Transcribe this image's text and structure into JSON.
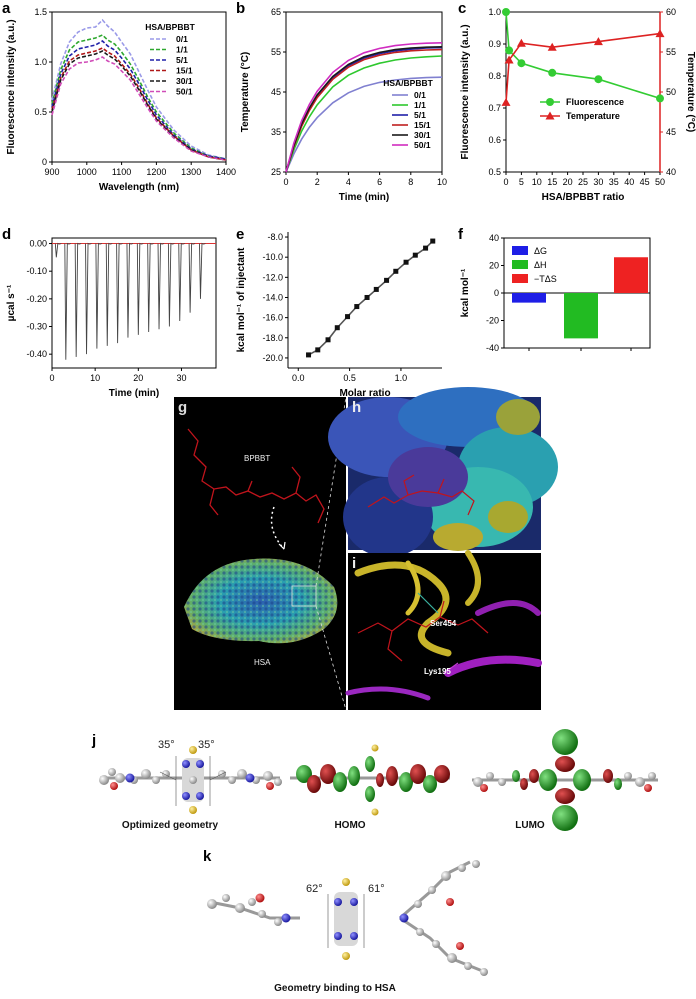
{
  "panel_labels": {
    "a": "a",
    "b": "b",
    "c": "c",
    "d": "d",
    "e": "e",
    "f": "f",
    "g": "g",
    "h": "h",
    "i": "i",
    "j": "j",
    "k": "k"
  },
  "colors": {
    "s01": "#9a9ae8",
    "s11": "#2ea82e",
    "s51": "#2121a8",
    "s151": "#b01818",
    "s301": "#1a1a1a",
    "s501": "#d04cb8",
    "bar_dG": "#1e1ee6",
    "bar_dH": "#22bb22",
    "bar_TdS": "#ee2222"
  },
  "chart_data": [
    {
      "id": "a",
      "type": "line",
      "xlabel": "Wavelength (nm)",
      "ylabel": "Fluorescence intensity (a.u.)",
      "xlim": [
        900,
        1400
      ],
      "ylim": [
        0,
        1.5
      ],
      "xticks": [
        900,
        1000,
        1100,
        1200,
        1300,
        1400
      ],
      "yticks": [
        0,
        0.5,
        1.0,
        1.5
      ],
      "xtick_labels": [
        "900",
        "1000",
        "1100",
        "1200",
        "1300",
        "1400"
      ],
      "ytick_labels": [
        "0",
        "0.5",
        "1.0",
        "1.5"
      ],
      "legend_title": "HSA/BPBBT",
      "legend_position": "top-right",
      "line_style": "dashed",
      "x": [
        900,
        925,
        950,
        975,
        1000,
        1025,
        1045,
        1060,
        1080,
        1100,
        1125,
        1150,
        1175,
        1200,
        1250,
        1300,
        1350,
        1400
      ],
      "series": [
        {
          "name": "0/1",
          "color": "#9a9ae8",
          "values": [
            0.62,
            0.98,
            1.2,
            1.3,
            1.34,
            1.35,
            1.42,
            1.36,
            1.3,
            1.2,
            1.08,
            0.9,
            0.72,
            0.55,
            0.32,
            0.16,
            0.07,
            0.03
          ]
        },
        {
          "name": "1/1",
          "color": "#2ea82e",
          "values": [
            0.58,
            0.92,
            1.12,
            1.2,
            1.22,
            1.24,
            1.27,
            1.22,
            1.18,
            1.1,
            0.98,
            0.82,
            0.65,
            0.5,
            0.29,
            0.14,
            0.06,
            0.03
          ]
        },
        {
          "name": "5/1",
          "color": "#2121a8",
          "values": [
            0.55,
            0.88,
            1.06,
            1.13,
            1.15,
            1.17,
            1.21,
            1.16,
            1.12,
            1.04,
            0.93,
            0.78,
            0.62,
            0.47,
            0.27,
            0.13,
            0.06,
            0.03
          ]
        },
        {
          "name": "15/1",
          "color": "#b01818",
          "values": [
            0.52,
            0.84,
            1.01,
            1.07,
            1.09,
            1.11,
            1.14,
            1.1,
            1.06,
            0.98,
            0.88,
            0.74,
            0.58,
            0.44,
            0.26,
            0.12,
            0.05,
            0.02
          ]
        },
        {
          "name": "30/1",
          "color": "#1a1a1a",
          "values": [
            0.5,
            0.82,
            0.98,
            1.04,
            1.06,
            1.08,
            1.11,
            1.07,
            1.03,
            0.96,
            0.86,
            0.72,
            0.57,
            0.43,
            0.25,
            0.12,
            0.05,
            0.02
          ]
        },
        {
          "name": "50/1",
          "color": "#d04cb8",
          "values": [
            0.47,
            0.78,
            0.93,
            0.99,
            1.0,
            1.02,
            1.05,
            1.01,
            0.98,
            0.91,
            0.82,
            0.68,
            0.54,
            0.41,
            0.24,
            0.11,
            0.05,
            0.02
          ]
        }
      ]
    },
    {
      "id": "b",
      "type": "line",
      "xlabel": "Time (min)",
      "ylabel": "Temperature (°C)",
      "xlim": [
        0,
        10
      ],
      "ylim": [
        25,
        65
      ],
      "xticks": [
        0,
        2,
        4,
        6,
        8,
        10
      ],
      "yticks": [
        25,
        35,
        45,
        55,
        65
      ],
      "xtick_labels": [
        "0",
        "2",
        "4",
        "6",
        "8",
        "10"
      ],
      "ytick_labels": [
        "25",
        "35",
        "45",
        "55",
        "65"
      ],
      "legend_title": "HSA/BPBBT",
      "legend_position": "bottom-right",
      "line_style": "solid",
      "x": [
        0,
        0.5,
        1,
        1.5,
        2,
        3,
        4,
        5,
        6,
        7,
        8,
        9,
        10
      ],
      "series": [
        {
          "name": "0/1",
          "color": "#8080d0",
          "values": [
            25,
            29.5,
            33.2,
            36.2,
            38.6,
            42.3,
            44.8,
            46.4,
            47.4,
            48.0,
            48.4,
            48.6,
            48.7
          ]
        },
        {
          "name": "1/1",
          "color": "#2ec82e",
          "values": [
            25,
            30.5,
            35.2,
            38.8,
            41.8,
            46.3,
            49.2,
            51.0,
            52.2,
            53.0,
            53.5,
            53.8,
            54.0
          ]
        },
        {
          "name": "5/1",
          "color": "#2121a8",
          "values": [
            25,
            31.5,
            36.8,
            40.8,
            44.0,
            48.6,
            51.6,
            53.5,
            54.6,
            55.3,
            55.7,
            56.0,
            56.1
          ]
        },
        {
          "name": "15/1",
          "color": "#c02020",
          "values": [
            25,
            31.3,
            36.4,
            40.4,
            43.6,
            48.2,
            51.2,
            53.1,
            54.2,
            54.9,
            55.3,
            55.5,
            55.6
          ]
        },
        {
          "name": "30/1",
          "color": "#1a1a1a",
          "values": [
            25,
            31.6,
            37.0,
            41.0,
            44.3,
            48.9,
            51.9,
            53.8,
            54.9,
            55.6,
            56.0,
            56.2,
            56.3
          ]
        },
        {
          "name": "50/1",
          "color": "#d02cc0",
          "values": [
            25,
            32.2,
            37.8,
            41.9,
            45.2,
            49.9,
            52.9,
            54.8,
            55.9,
            56.6,
            57.0,
            57.2,
            57.3
          ]
        }
      ]
    },
    {
      "id": "c",
      "type": "line",
      "xlabel": "HSA/BPBBT ratio",
      "ylabel": "Fluorescence intensity (a.u.)",
      "y2label": "Temperature (°C)",
      "xlim": [
        0,
        50
      ],
      "ylim": [
        0.5,
        1.0
      ],
      "y2lim": [
        40,
        60
      ],
      "xticks": [
        0,
        5,
        10,
        15,
        20,
        25,
        30,
        35,
        40,
        45,
        50
      ],
      "xtick_labels": [
        "0",
        "5",
        "10",
        "15",
        "20",
        "25",
        "30",
        "35",
        "40",
        "45",
        "50"
      ],
      "yticks": [
        0.5,
        0.6,
        0.7,
        0.8,
        0.9,
        1.0
      ],
      "ytick_labels": [
        "0.5",
        "0.6",
        "0.7",
        "0.8",
        "0.9",
        "1.0"
      ],
      "y2ticks": [
        40,
        45,
        50,
        55,
        60
      ],
      "y2tick_labels": [
        "40",
        "45",
        "50",
        "55",
        "60"
      ],
      "legend_position": "bottom-center",
      "x": [
        0,
        1,
        5,
        15,
        30,
        50
      ],
      "series": [
        {
          "name": "Fluorescence",
          "axis": "left",
          "color": "#33cc33",
          "marker": "circle",
          "values": [
            1.0,
            0.88,
            0.84,
            0.81,
            0.79,
            0.73
          ]
        },
        {
          "name": "Temperature",
          "axis": "right",
          "color": "#dd2222",
          "marker": "triangle",
          "values": [
            48.7,
            54.0,
            56.1,
            55.6,
            56.3,
            57.3
          ]
        }
      ]
    },
    {
      "id": "d",
      "type": "line",
      "xlabel": "Time (min)",
      "ylabel": "µcal s⁻¹",
      "xlim": [
        0,
        38
      ],
      "ylim": [
        -0.45,
        0.02
      ],
      "xticks": [
        0,
        10,
        20,
        30
      ],
      "xtick_labels": [
        "0",
        "10",
        "20",
        "30"
      ],
      "yticks": [
        0,
        -0.1,
        -0.2,
        -0.3,
        -0.4
      ],
      "ytick_labels": [
        "0.00",
        "-0.10",
        "-0.20",
        "-0.30",
        "-0.40"
      ],
      "baseline": 0,
      "injection_times": [
        1.0,
        3.2,
        5.6,
        8.0,
        10.4,
        12.8,
        15.2,
        17.6,
        20.0,
        22.4,
        24.8,
        27.2,
        29.6,
        32.0,
        34.4
      ],
      "injection_peaks": [
        -0.05,
        -0.42,
        -0.41,
        -0.4,
        -0.38,
        -0.37,
        -0.36,
        -0.34,
        -0.33,
        -0.32,
        -0.31,
        -0.3,
        -0.28,
        -0.25,
        -0.2
      ]
    },
    {
      "id": "e",
      "type": "scatter",
      "xlabel": "Molar ratio",
      "ylabel": "kcal mol⁻¹ of injectant",
      "xlim": [
        -0.1,
        1.4
      ],
      "ylim": [
        -21,
        -7.5
      ],
      "xticks": [
        0,
        0.5,
        1.0
      ],
      "xtick_labels": [
        "0.0",
        "0.5",
        "1.0"
      ],
      "yticks": [
        -20,
        -18,
        -16,
        -14,
        -12,
        -10,
        -8
      ],
      "ytick_labels": [
        "-20.0",
        "-18.0",
        "-16.0",
        "-14.0",
        "-12.0",
        "-10.0",
        "-8.0"
      ],
      "x": [
        0.1,
        0.19,
        0.29,
        0.38,
        0.48,
        0.57,
        0.67,
        0.76,
        0.86,
        0.95,
        1.05,
        1.14,
        1.24,
        1.31
      ],
      "values": [
        -19.7,
        -19.2,
        -18.2,
        -17.0,
        -15.9,
        -14.9,
        -14.0,
        -13.2,
        -12.3,
        -11.4,
        -10.5,
        -9.8,
        -9.1,
        -8.4
      ]
    },
    {
      "id": "f",
      "type": "bar",
      "ylabel": "kcal mol⁻¹",
      "ylim": [
        -40,
        40
      ],
      "yticks": [
        -40,
        -20,
        0,
        20,
        40
      ],
      "ytick_labels": [
        "-40",
        "-20",
        "0",
        "20",
        "40"
      ],
      "legend_position": "top-left",
      "categories": [
        "ΔG",
        "ΔH",
        "−TΔS"
      ],
      "values": [
        -7,
        -33,
        26
      ],
      "colors": [
        "#1e1ee6",
        "#22bb22",
        "#ee2222"
      ]
    }
  ],
  "panel_g": {
    "label_ligand": "BPBBT",
    "label_protein": "HSA"
  },
  "panel_i": {
    "residue1": "Ser454",
    "residue2": "Lys195"
  },
  "panel_j": {
    "angle_left": "35°",
    "angle_right": "35°",
    "caption_left": "Optimized geometry",
    "caption_mid": "HOMO",
    "caption_right": "LUMO"
  },
  "panel_k": {
    "angle_left": "62°",
    "angle_right": "61°",
    "caption": "Geometry binding to HSA"
  }
}
